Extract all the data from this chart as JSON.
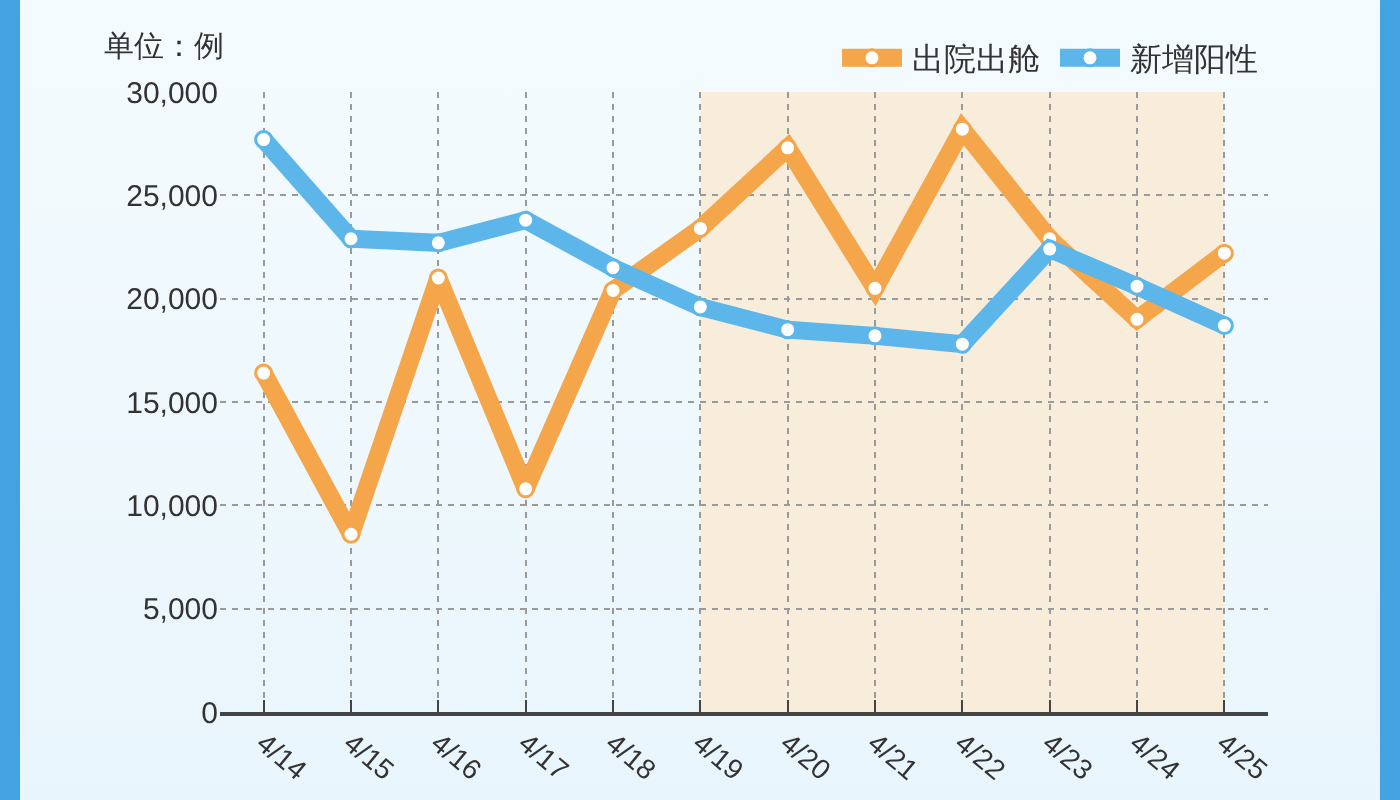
{
  "chart_data": {
    "type": "line",
    "ylabel": "单位：例",
    "categories": [
      "4/14",
      "4/15",
      "4/16",
      "4/17",
      "4/18",
      "4/19",
      "4/20",
      "4/21",
      "4/22",
      "4/23",
      "4/24",
      "4/25"
    ],
    "series": [
      {
        "name": "出院出舱",
        "color": "#f5a64a",
        "values": [
          16400,
          8600,
          21000,
          10800,
          20400,
          23400,
          27300,
          20500,
          28200,
          22900,
          19000,
          22200
        ]
      },
      {
        "name": "新增阳性",
        "color": "#5cb6ea",
        "values": [
          27700,
          22900,
          22700,
          23800,
          21500,
          19600,
          18500,
          18200,
          17800,
          22400,
          20600,
          18700
        ]
      }
    ],
    "ylim": [
      0,
      30000
    ],
    "yticks": [
      0,
      {
        "value": 5000,
        "label": "5,000"
      },
      {
        "value": 10000,
        "label": "10,000"
      },
      {
        "value": 15000,
        "label": "15,000"
      },
      {
        "value": 20000,
        "label": "20,000"
      },
      {
        "value": 25000,
        "label": "25,000"
      },
      {
        "value": 30000,
        "label": "30,000"
      }
    ],
    "bands": [
      {
        "axis": "x",
        "from": "4/19",
        "to": "4/25",
        "color": "#f8eddb"
      }
    ],
    "grid": true,
    "legend": "top right",
    "marker": "circle",
    "line_style": "solid"
  }
}
